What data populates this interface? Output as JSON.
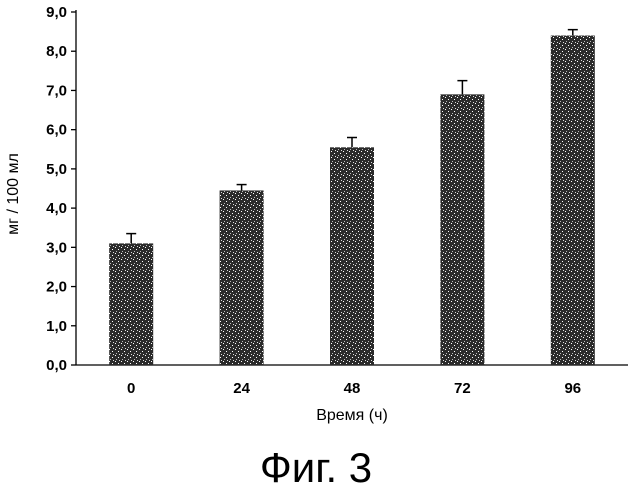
{
  "chart_data": {
    "type": "bar",
    "categories": [
      "0",
      "24",
      "48",
      "72",
      "96"
    ],
    "values": [
      3.1,
      4.45,
      5.55,
      6.9,
      8.4
    ],
    "errors": [
      0.25,
      0.15,
      0.25,
      0.35,
      0.15
    ],
    "xlabel": "Время (ч)",
    "ylabel": "мг / 100 мл",
    "ylim": [
      0,
      9
    ],
    "yticks": [
      "0,0",
      "1,0",
      "2,0",
      "3,0",
      "4,0",
      "5,0",
      "6,0",
      "7,0",
      "8,0",
      "9,0"
    ],
    "grid": false,
    "bar_color": "#1a1a1a"
  },
  "caption": "Фиг. 3"
}
